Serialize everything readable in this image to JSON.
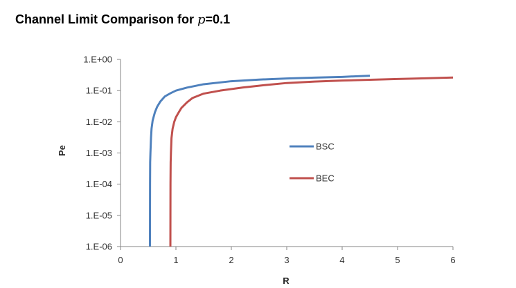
{
  "chart_data": {
    "type": "line",
    "title_prefix": "Channel Limit Comparison for ",
    "title_var": "p",
    "title_suffix": "=0.1",
    "xlabel": "R",
    "ylabel": "Pe",
    "xlim": [
      0,
      6
    ],
    "ylim": [
      1e-06,
      1
    ],
    "yscale": "log",
    "x_ticks": [
      "0",
      "1",
      "2",
      "3",
      "4",
      "5",
      "6"
    ],
    "y_ticks": [
      "1.E+00",
      "1.E-01",
      "1.E-02",
      "1.E-03",
      "1.E-04",
      "1.E-05",
      "1.E-06"
    ],
    "grid": false,
    "legend_position": "center-right",
    "series": [
      {
        "name": "BSC",
        "color": "#4F81BD",
        "points": [
          [
            0.531,
            1e-06
          ],
          [
            0.532,
            1e-05
          ],
          [
            0.533,
            0.0001
          ],
          [
            0.535,
            0.0005
          ],
          [
            0.54,
            0.001
          ],
          [
            0.55,
            0.003
          ],
          [
            0.56,
            0.006
          ],
          [
            0.58,
            0.011
          ],
          [
            0.62,
            0.02
          ],
          [
            0.66,
            0.03
          ],
          [
            0.72,
            0.045
          ],
          [
            0.8,
            0.065
          ],
          [
            0.9,
            0.082
          ],
          [
            1.0,
            0.1
          ],
          [
            1.2,
            0.125
          ],
          [
            1.5,
            0.16
          ],
          [
            2.0,
            0.2
          ],
          [
            2.5,
            0.225
          ],
          [
            3.0,
            0.245
          ],
          [
            3.5,
            0.26
          ],
          [
            4.0,
            0.275
          ],
          [
            4.5,
            0.3
          ]
        ]
      },
      {
        "name": "BEC",
        "color": "#C0504D",
        "points": [
          [
            0.9,
            1e-06
          ],
          [
            0.901,
            1e-05
          ],
          [
            0.902,
            0.0001
          ],
          [
            0.905,
            0.0005
          ],
          [
            0.91,
            0.001
          ],
          [
            0.92,
            0.003
          ],
          [
            0.94,
            0.006
          ],
          [
            0.97,
            0.01
          ],
          [
            1.0,
            0.014
          ],
          [
            1.05,
            0.02
          ],
          [
            1.1,
            0.028
          ],
          [
            1.2,
            0.042
          ],
          [
            1.3,
            0.058
          ],
          [
            1.5,
            0.08
          ],
          [
            1.8,
            0.1
          ],
          [
            2.2,
            0.125
          ],
          [
            2.6,
            0.15
          ],
          [
            3.0,
            0.175
          ],
          [
            3.5,
            0.195
          ],
          [
            4.0,
            0.21
          ],
          [
            4.5,
            0.222
          ],
          [
            5.0,
            0.235
          ],
          [
            5.5,
            0.248
          ],
          [
            6.0,
            0.262
          ]
        ]
      }
    ]
  }
}
